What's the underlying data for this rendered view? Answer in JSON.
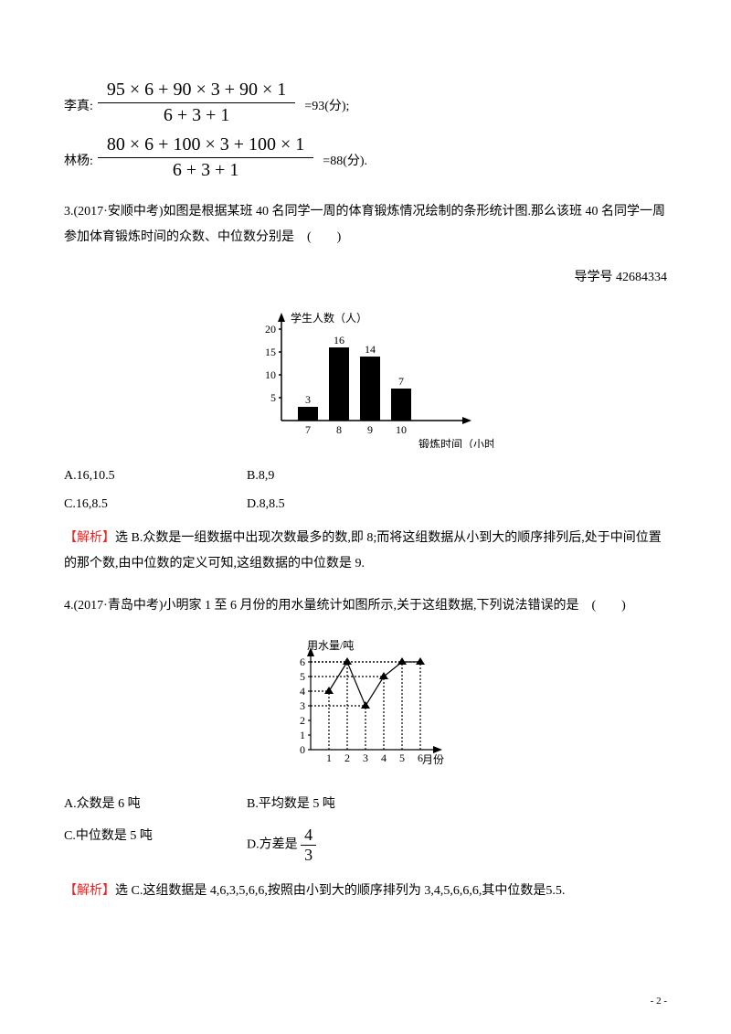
{
  "eq1": {
    "label": "李真:",
    "numerator": "95 × 6 + 90 × 3 + 90 × 1",
    "denominator": "6 + 3 + 1",
    "result": "=93(分);"
  },
  "eq2": {
    "label": "林杨:",
    "numerator": "80 × 6 + 100 × 3 + 100 × 1",
    "denominator": "6 + 3 + 1",
    "result": "=88(分)."
  },
  "q3": {
    "text": "3.(2017·安顺中考)如图是根据某班 40 名同学一周的体育锻炼情况绘制的条形统计图.那么该班 40 名同学一周参加体育锻炼时间的众数、中位数分别是　(　　)",
    "ref": "导学号 42684334",
    "chart": {
      "type": "bar",
      "ylabel": "学生人数（人）",
      "xlabel": "锻炼时间（小时）",
      "yticks": [
        5,
        10,
        15,
        20
      ],
      "xticks": [
        7,
        8,
        9,
        10
      ],
      "values": [
        3,
        16,
        14,
        7
      ],
      "value_labels": [
        "3",
        "16",
        "14",
        "7"
      ],
      "bar_color": "#000000",
      "axis_color": "#000000",
      "font_size": 12
    },
    "optA": "A.16,10.5",
    "optB": "B.8,9",
    "optC": "C.16,8.5",
    "optD": "D.8,8.5",
    "expl_label": "【解析】",
    "expl": "选 B.众数是一组数据中出现次数最多的数,即 8;而将这组数据从小到大的顺序排列后,处于中间位置的那个数,由中位数的定义可知,这组数据的中位数是 9."
  },
  "q4": {
    "text": "4.(2017·青岛中考)小明家 1 至 6 月份的用水量统计如图所示,关于这组数据,下列说法错误的是　(　　)",
    "chart": {
      "type": "line",
      "ylabel": "用水量/吨",
      "xlabel": "月份",
      "yticks": [
        0,
        1,
        2,
        3,
        4,
        5,
        6
      ],
      "xticks": [
        1,
        2,
        3,
        4,
        5,
        6
      ],
      "values": [
        4,
        6,
        3,
        5,
        6,
        6
      ],
      "line_color": "#000000",
      "marker": "triangle",
      "marker_size": 5,
      "axis_color": "#000000",
      "font_size": 12
    },
    "optA": "A.众数是 6 吨",
    "optB": "B.平均数是 5 吨",
    "optC": "C.中位数是 5 吨",
    "optD_prefix": "D.方差是",
    "optD_num": "4",
    "optD_den": "3",
    "expl_label": "【解析】",
    "expl": "选 C.这组数据是 4,6,3,5,6,6,按照由小到大的顺序排列为 3,4,5,6,6,6,其中位数是5.5."
  },
  "footer": "- 2 -"
}
